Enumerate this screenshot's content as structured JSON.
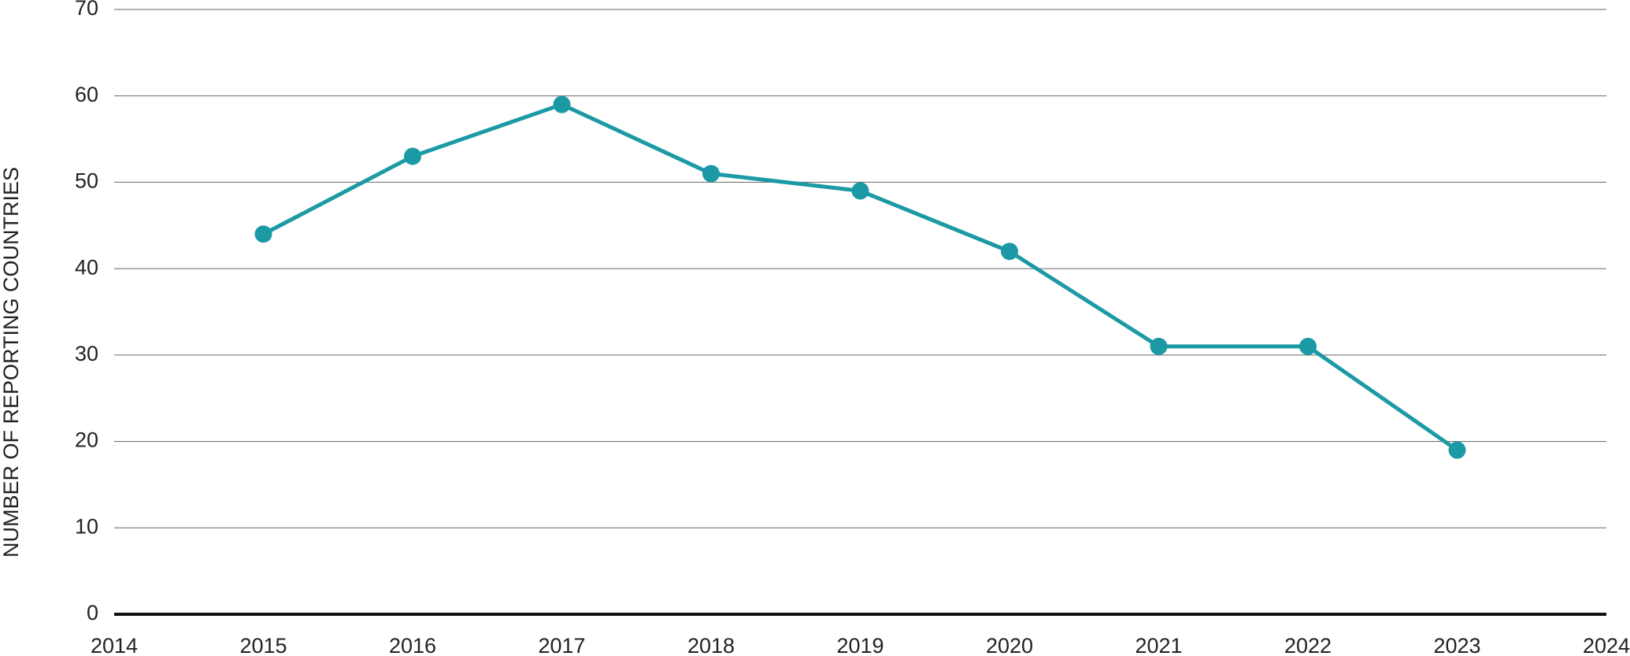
{
  "chart_data": {
    "type": "line",
    "y_label": "NUMBER OF REPORTING COUNTRIES",
    "x": [
      2015,
      2016,
      2017,
      2018,
      2019,
      2020,
      2021,
      2022,
      2023
    ],
    "series": [
      {
        "color": "#1b9aa5",
        "values": [
          44,
          53,
          59,
          51,
          49,
          42,
          31,
          31,
          19
        ]
      }
    ],
    "xlim": [
      2014,
      2024
    ],
    "xticks": [
      2014,
      2015,
      2016,
      2017,
      2018,
      2019,
      2020,
      2021,
      2022,
      2023,
      2024
    ],
    "ylim": [
      0,
      70
    ],
    "yticks": [
      0,
      10,
      20,
      30,
      40,
      50,
      60,
      70
    ],
    "grid": true
  }
}
